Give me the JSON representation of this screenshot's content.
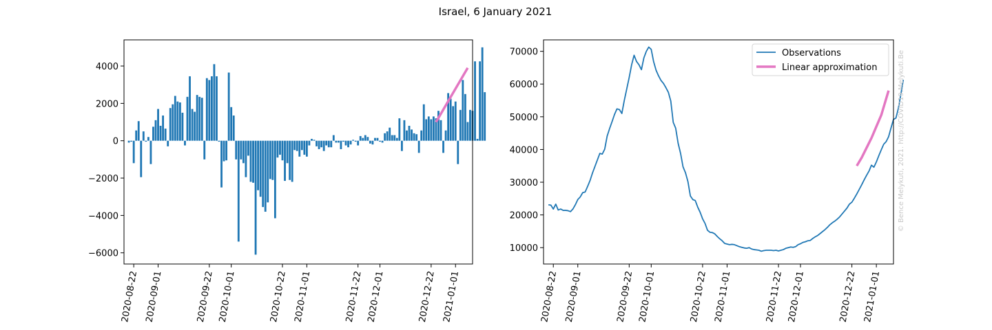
{
  "figure": {
    "title": "Israel, 6 January 2021",
    "credit": "© Bence Melykuti, 2021. http://COVID19.Melykuti.Be"
  },
  "colors": {
    "observations": "#1f77b4",
    "approximation": "#e377c2",
    "credit": "#c8c8c8"
  },
  "chart_data": [
    {
      "type": "bar",
      "title": "",
      "xlabel": "",
      "ylabel": "",
      "x_start": "2020-08-20",
      "xlim": [
        "2020-08-18",
        "2021-01-08"
      ],
      "ylim": [
        -6600,
        5400
      ],
      "yticks": [
        -6000,
        -4000,
        -2000,
        0,
        2000,
        4000
      ],
      "yticklabels": [
        "−6000",
        "−4000",
        "−2000",
        "0",
        "2000",
        "4000"
      ],
      "xticks": [
        "2020-08-22",
        "2020-09-01",
        "2020-09-22",
        "2020-10-01",
        "2020-10-22",
        "2020-11-01",
        "2020-11-22",
        "2020-12-01",
        "2020-12-22",
        "2021-01-01"
      ],
      "grid": false,
      "series": [
        {
          "values": [
            -100,
            -50,
            -1200,
            550,
            1050,
            -1950,
            500,
            -50,
            200,
            -1250,
            750,
            1100,
            1700,
            800,
            1350,
            650,
            -300,
            1750,
            1950,
            2400,
            2100,
            2050,
            1500,
            -250,
            2350,
            3450,
            1700,
            1550,
            2450,
            2350,
            2300,
            -1000,
            3350,
            3250,
            3450,
            4100,
            3450,
            -50,
            -2500,
            -1100,
            -1050,
            3650,
            1800,
            1350,
            -1000,
            -5400,
            -1000,
            -1200,
            -1950,
            -800,
            -2200,
            -2250,
            -6100,
            -2650,
            -3000,
            -3550,
            -3800,
            -3300,
            -2050,
            -2100,
            -4150,
            -900,
            -750,
            -1050,
            -2150,
            -1200,
            -2100,
            -2200,
            -500,
            -550,
            -850,
            -500,
            -750,
            -850,
            -250,
            100,
            50,
            -300,
            -450,
            -350,
            -550,
            -250,
            -350,
            -350,
            300,
            -100,
            -100,
            -450,
            -50,
            -250,
            -350,
            -200,
            50,
            -50,
            -250,
            250,
            150,
            300,
            200,
            -150,
            -200,
            150,
            150,
            -50,
            -100,
            400,
            500,
            700,
            300,
            300,
            150,
            1200,
            -550,
            1100,
            550,
            800,
            600,
            400,
            350,
            -650,
            550,
            1950,
            1150,
            1300,
            1150,
            1300,
            1200,
            1600,
            1100,
            -650,
            550,
            2550,
            2250,
            1850,
            2100,
            -1250,
            1650,
            3250,
            2500,
            1000,
            1650,
            1600,
            4250,
            100,
            4250,
            5000,
            2600
          ]
        },
        {
          "name": "Linear approximation",
          "kind": "line",
          "x": [
            "2020-12-24",
            "2021-01-06"
          ],
          "y": [
            1000,
            3900
          ]
        }
      ]
    },
    {
      "type": "line",
      "title": "",
      "xlabel": "",
      "ylabel": "",
      "x_start": "2020-08-20",
      "xlim": [
        "2020-08-18",
        "2021-01-08"
      ],
      "ylim": [
        5000,
        73500
      ],
      "yticks": [
        10000,
        20000,
        30000,
        40000,
        50000,
        60000,
        70000
      ],
      "yticklabels": [
        "10000",
        "20000",
        "30000",
        "40000",
        "50000",
        "60000",
        "70000"
      ],
      "xticks": [
        "2020-08-22",
        "2020-09-01",
        "2020-09-22",
        "2020-10-01",
        "2020-10-22",
        "2020-11-01",
        "2020-11-22",
        "2020-12-01",
        "2020-12-22",
        "2021-01-01"
      ],
      "grid": false,
      "legend": "top-right",
      "series": [
        {
          "name": "Observations",
          "values": [
            23100,
            23000,
            21800,
            23300,
            21500,
            21800,
            21400,
            21400,
            21300,
            21000,
            21800,
            23100,
            24700,
            25500,
            26800,
            27000,
            28700,
            30500,
            32800,
            34800,
            36800,
            38800,
            38600,
            40100,
            44100,
            46400,
            48500,
            50700,
            52400,
            52200,
            51000,
            55000,
            58500,
            62000,
            65900,
            68800,
            66900,
            65900,
            64400,
            68000,
            70000,
            71300,
            70600,
            66800,
            64200,
            62500,
            61100,
            60200,
            58900,
            57500,
            54800,
            48300,
            46500,
            41900,
            38800,
            34700,
            32900,
            30200,
            25800,
            24700,
            24400,
            22400,
            20800,
            18800,
            17400,
            15300,
            14700,
            14600,
            14200,
            13400,
            12700,
            12100,
            11300,
            11100,
            10900,
            11000,
            10900,
            10600,
            10300,
            10100,
            9900,
            9800,
            10000,
            9600,
            9400,
            9300,
            9200,
            8900,
            9100,
            9200,
            9200,
            9200,
            9100,
            9200,
            9000,
            9200,
            9400,
            9800,
            10000,
            10200,
            10100,
            10300,
            10900,
            11200,
            11600,
            11800,
            12100,
            12200,
            12800,
            13300,
            13700,
            14300,
            14900,
            15500,
            16200,
            17000,
            17600,
            18100,
            18700,
            19400,
            20300,
            21200,
            22100,
            23300,
            23900,
            25100,
            26400,
            27800,
            29200,
            30700,
            32100,
            33400,
            35200,
            34600,
            36200,
            38100,
            39900,
            41600,
            42400,
            43900,
            46600,
            49200,
            49600,
            52600,
            56800,
            61300
          ]
        },
        {
          "name": "Linear approximation",
          "kind": "line",
          "x": [
            "2020-12-24",
            "2020-12-26",
            "2020-12-28",
            "2020-12-30",
            "2021-01-01",
            "2021-01-03",
            "2021-01-06"
          ],
          "y": [
            35000,
            37500,
            40500,
            43500,
            47000,
            50500,
            58000
          ]
        }
      ]
    }
  ]
}
